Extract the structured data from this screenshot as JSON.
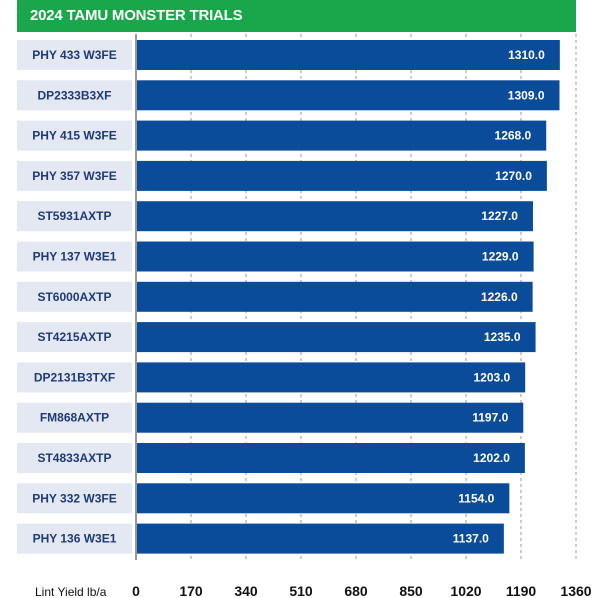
{
  "header": {
    "title": "2024 TAMU MONSTER TRIALS"
  },
  "colors": {
    "title_bg": "#1aa64a",
    "bar": "#0b4c9a",
    "label_box": "#e3e8f2",
    "label_text": "#1f3a78",
    "grid": "#9a9a9a"
  },
  "chart_data": {
    "type": "bar",
    "orientation": "horizontal",
    "title": "2024 TAMU MONSTER TRIALS",
    "xlabel": "Lint Yield lb/a",
    "ylabel": "",
    "categories": [
      "PHY 433 W3FE",
      "DP2333B3XF",
      "PHY 415 W3FE",
      "PHY 357 W3FE",
      "ST5931AXTP",
      "PHY 137 W3E1",
      "ST6000AXTP",
      "ST4215AXTP",
      "DP2131B3TXF",
      "FM868AXTP",
      "ST4833AXTP",
      "PHY 332 W3FE",
      "PHY 136 W3E1"
    ],
    "values": [
      1310.0,
      1309.0,
      1268.0,
      1270.0,
      1227.0,
      1229.0,
      1226.0,
      1235.0,
      1203.0,
      1197.0,
      1202.0,
      1154.0,
      1137.0
    ],
    "value_labels": [
      "1310.0",
      "1309.0",
      "1268.0",
      "1270.0",
      "1227.0",
      "1229.0",
      "1226.0",
      "1235.0",
      "1203.0",
      "1197.0",
      "1202.0",
      "1154.0",
      "1137.0"
    ],
    "xticks": [
      "0",
      "170",
      "340",
      "510",
      "680",
      "850",
      "1020",
      "1190",
      "1360"
    ],
    "xlim": [
      0,
      1360
    ],
    "grid": true,
    "legend": "none"
  }
}
